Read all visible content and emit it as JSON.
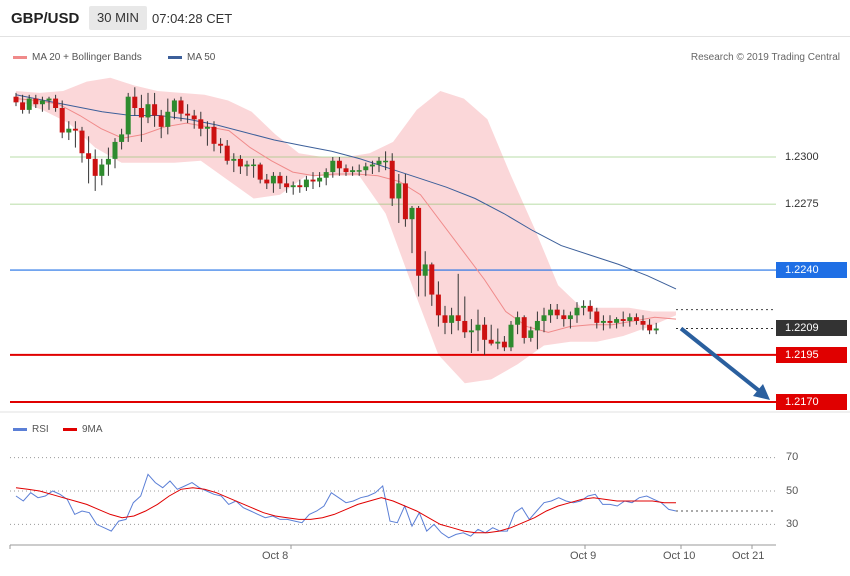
{
  "header": {
    "symbol": "GBP/USD",
    "timeframe": "30 MIN",
    "time": "07:04:28 CET"
  },
  "legend": {
    "ma_bb": {
      "label": "MA 20 + Bollinger Bands",
      "color": "#f08a8a"
    },
    "ma50": {
      "label": "MA 50",
      "color": "#3c5f9a"
    },
    "rsi": {
      "label": "RSI",
      "color": "#5b7fd6"
    },
    "ma9": {
      "label": "9MA",
      "color": "#e00000"
    }
  },
  "copyright": "Research © 2019 Trading Central",
  "price_labels": [
    {
      "text": "1.2300",
      "style": "plain"
    },
    {
      "text": "1.2275",
      "style": "plain"
    },
    {
      "text": "1.2240",
      "style": "blue"
    },
    {
      "text": "1.2209",
      "style": "dark"
    },
    {
      "text": "1.2195",
      "style": "red"
    },
    {
      "text": "1.2170",
      "style": "red"
    }
  ],
  "rsi_ticks": [
    "70",
    "50",
    "30"
  ],
  "x_labels": [
    "Oct 8",
    "Oct 9",
    "Oct 10",
    "Oct 21"
  ],
  "chart_data": {
    "type": "candlestick",
    "x_labels": [
      "Oct 8",
      "Oct 9",
      "Oct 10",
      "Oct 21"
    ],
    "price_levels": [
      {
        "value": 1.23,
        "kind": "grid",
        "color": "#7cbf5a"
      },
      {
        "value": 1.2275,
        "kind": "grid",
        "color": "#7cbf5a"
      },
      {
        "value": 1.224,
        "kind": "support",
        "color": "#1f6fe5"
      },
      {
        "value": 1.2209,
        "kind": "last-price",
        "color": "#333333"
      },
      {
        "value": 1.2195,
        "kind": "target",
        "color": "#e00000"
      },
      {
        "value": 1.217,
        "kind": "target",
        "color": "#e00000"
      }
    ],
    "arrow": {
      "from": [
        1.2209
      ],
      "to": [
        1.217
      ],
      "direction": "down",
      "color": "#2a5f9e"
    },
    "candles": [
      [
        1.2332,
        1.2334,
        1.2327,
        1.2329
      ],
      [
        1.2329,
        1.2333,
        1.2323,
        1.2325
      ],
      [
        1.2325,
        1.2333,
        1.2323,
        1.2331
      ],
      [
        1.2331,
        1.2333,
        1.2326,
        1.2328
      ],
      [
        1.2328,
        1.2332,
        1.2324,
        1.233
      ],
      [
        1.233,
        1.2332,
        1.2325,
        1.2331
      ],
      [
        1.2331,
        1.2333,
        1.2324,
        1.2326
      ],
      [
        1.2326,
        1.233,
        1.231,
        1.2313
      ],
      [
        1.2313,
        1.2319,
        1.2309,
        1.2315
      ],
      [
        1.2315,
        1.2319,
        1.2305,
        1.2314
      ],
      [
        1.2314,
        1.2316,
        1.2297,
        1.2302
      ],
      [
        1.2302,
        1.2311,
        1.2286,
        1.2299
      ],
      [
        1.2299,
        1.2304,
        1.2282,
        1.229
      ],
      [
        1.229,
        1.2299,
        1.2285,
        1.2296
      ],
      [
        1.2296,
        1.2305,
        1.229,
        1.2299
      ],
      [
        1.2299,
        1.231,
        1.2294,
        1.2308
      ],
      [
        1.2308,
        1.2315,
        1.2304,
        1.2312
      ],
      [
        1.2312,
        1.2334,
        1.2308,
        1.2332
      ],
      [
        1.2332,
        1.2337,
        1.2322,
        1.2326
      ],
      [
        1.2326,
        1.2333,
        1.2308,
        1.2321
      ],
      [
        1.2321,
        1.2334,
        1.2318,
        1.2328
      ],
      [
        1.2328,
        1.2334,
        1.2316,
        1.2322
      ],
      [
        1.2322,
        1.2325,
        1.231,
        1.2316
      ],
      [
        1.2316,
        1.2331,
        1.2312,
        1.2324
      ],
      [
        1.2324,
        1.2331,
        1.232,
        1.233
      ],
      [
        1.233,
        1.2332,
        1.2319,
        1.2323
      ],
      [
        1.2323,
        1.2328,
        1.2318,
        1.2322
      ],
      [
        1.2322,
        1.2325,
        1.2315,
        1.232
      ],
      [
        1.232,
        1.2324,
        1.2311,
        1.2315
      ],
      [
        1.2315,
        1.2319,
        1.2306,
        1.2316
      ],
      [
        1.2316,
        1.2319,
        1.2303,
        1.2307
      ],
      [
        1.2307,
        1.231,
        1.2302,
        1.2306
      ],
      [
        1.2306,
        1.2309,
        1.2296,
        1.2298
      ],
      [
        1.2298,
        1.2302,
        1.2292,
        1.2299
      ],
      [
        1.2299,
        1.2301,
        1.2291,
        1.2295
      ],
      [
        1.2295,
        1.2298,
        1.229,
        1.2296
      ],
      [
        1.2296,
        1.2299,
        1.2289,
        1.2296
      ],
      [
        1.2296,
        1.2297,
        1.2286,
        1.2288
      ],
      [
        1.2288,
        1.2291,
        1.2283,
        1.2286
      ],
      [
        1.2286,
        1.2292,
        1.2281,
        1.229
      ],
      [
        1.229,
        1.2292,
        1.2283,
        1.2286
      ],
      [
        1.2286,
        1.229,
        1.2281,
        1.2284
      ],
      [
        1.2284,
        1.2287,
        1.228,
        1.2285
      ],
      [
        1.2285,
        1.2288,
        1.2281,
        1.2284
      ],
      [
        1.2284,
        1.229,
        1.2282,
        1.2288
      ],
      [
        1.2288,
        1.2292,
        1.2283,
        1.2287
      ],
      [
        1.2287,
        1.2292,
        1.2284,
        1.2289
      ],
      [
        1.2289,
        1.2294,
        1.2285,
        1.2292
      ],
      [
        1.2292,
        1.23,
        1.2289,
        1.2298
      ],
      [
        1.2298,
        1.23,
        1.229,
        1.2294
      ],
      [
        1.2294,
        1.2296,
        1.229,
        1.2292
      ],
      [
        1.2292,
        1.2295,
        1.229,
        1.2293
      ],
      [
        1.2293,
        1.2296,
        1.229,
        1.2293
      ],
      [
        1.2293,
        1.2297,
        1.229,
        1.2295
      ],
      [
        1.2295,
        1.2298,
        1.2291,
        1.2296
      ],
      [
        1.2296,
        1.23,
        1.2292,
        1.2298
      ],
      [
        1.2298,
        1.2303,
        1.2293,
        1.2298
      ],
      [
        1.2298,
        1.2302,
        1.2274,
        1.2278
      ],
      [
        1.2278,
        1.2291,
        1.2265,
        1.2286
      ],
      [
        1.2286,
        1.2291,
        1.2263,
        1.2267
      ],
      [
        1.2267,
        1.2274,
        1.2249,
        1.2273
      ],
      [
        1.2273,
        1.2274,
        1.2226,
        1.2237
      ],
      [
        1.2237,
        1.225,
        1.2226,
        1.2243
      ],
      [
        1.2243,
        1.2244,
        1.2221,
        1.2227
      ],
      [
        1.2227,
        1.2234,
        1.221,
        1.2216
      ],
      [
        1.2216,
        1.2221,
        1.2206,
        1.2212
      ],
      [
        1.2212,
        1.222,
        1.2206,
        1.2216
      ],
      [
        1.2216,
        1.2238,
        1.2208,
        1.2213
      ],
      [
        1.2213,
        1.2226,
        1.2204,
        1.2207
      ],
      [
        1.2207,
        1.2214,
        1.2196,
        1.2208
      ],
      [
        1.2208,
        1.2219,
        1.2197,
        1.2211
      ],
      [
        1.2211,
        1.2215,
        1.2195,
        1.2203
      ],
      [
        1.2203,
        1.2211,
        1.22,
        1.2201
      ],
      [
        1.2201,
        1.2209,
        1.2198,
        1.2202
      ],
      [
        1.2202,
        1.2205,
        1.2197,
        1.2199
      ],
      [
        1.2199,
        1.2213,
        1.2197,
        1.2211
      ],
      [
        1.2211,
        1.2218,
        1.2206,
        1.2215
      ],
      [
        1.2215,
        1.2216,
        1.2201,
        1.2204
      ],
      [
        1.2204,
        1.221,
        1.2202,
        1.2208
      ],
      [
        1.2208,
        1.2218,
        1.2198,
        1.2213
      ],
      [
        1.2213,
        1.222,
        1.2207,
        1.2216
      ],
      [
        1.2216,
        1.2222,
        1.2212,
        1.2219
      ],
      [
        1.2219,
        1.2222,
        1.2214,
        1.2216
      ],
      [
        1.2216,
        1.2219,
        1.221,
        1.2214
      ],
      [
        1.2214,
        1.2218,
        1.2209,
        1.2216
      ],
      [
        1.2216,
        1.2223,
        1.2212,
        1.222
      ],
      [
        1.222,
        1.2224,
        1.2216,
        1.2221
      ],
      [
        1.2221,
        1.2224,
        1.2214,
        1.2218
      ],
      [
        1.2218,
        1.222,
        1.2209,
        1.2212
      ],
      [
        1.2212,
        1.2216,
        1.2208,
        1.2213
      ],
      [
        1.2213,
        1.2216,
        1.2209,
        1.2212
      ],
      [
        1.2212,
        1.2215,
        1.2209,
        1.2214
      ],
      [
        1.2214,
        1.2218,
        1.221,
        1.2213
      ],
      [
        1.2213,
        1.2217,
        1.221,
        1.2215
      ],
      [
        1.2215,
        1.2217,
        1.2211,
        1.2213
      ],
      [
        1.2213,
        1.2216,
        1.2208,
        1.2211
      ],
      [
        1.2211,
        1.2214,
        1.2206,
        1.2208
      ],
      [
        1.2208,
        1.2212,
        1.2206,
        1.2209
      ]
    ],
    "ma50": [
      1.2333,
      1.233,
      1.2327,
      1.2324,
      1.2322,
      1.2322,
      1.232,
      1.2317,
      1.2313,
      1.2309,
      1.2306,
      1.2303,
      1.2299,
      1.2294,
      1.2289,
      1.2284,
      1.2278,
      1.227,
      1.2261,
      1.2253,
      1.2248,
      1.2243,
      1.2237,
      1.223
    ],
    "ma20": [
      1.2331,
      1.233,
      1.2328,
      1.2322,
      1.2315,
      1.231,
      1.2312,
      1.2316,
      1.2318,
      1.2316,
      1.2314,
      1.2305,
      1.2298,
      1.2292,
      1.229,
      1.2291,
      1.2291,
      1.229,
      1.2287,
      1.228,
      1.2265,
      1.225,
      1.2235,
      1.2218,
      1.221,
      1.2207,
      1.221,
      1.2211,
      1.2211,
      1.2213,
      1.2215,
      1.2214
    ],
    "bb_upper": [
      1.2335,
      1.2334,
      1.2335,
      1.234,
      1.2342,
      1.2338,
      1.2335,
      1.2334,
      1.2333,
      1.233,
      1.2324,
      1.2312,
      1.2302,
      1.23,
      1.23,
      1.2302,
      1.2308,
      1.2325,
      1.2335,
      1.2331,
      1.232,
      1.229,
      1.2262,
      1.2232,
      1.222,
      1.222,
      1.222,
      1.2218,
      1.2218
    ],
    "bb_lower": [
      1.233,
      1.2325,
      1.2318,
      1.2305,
      1.2297,
      1.2297,
      1.2297,
      1.2298,
      1.2288,
      1.2278,
      1.228,
      1.229,
      1.229,
      1.229,
      1.227,
      1.2232,
      1.2195,
      1.218,
      1.2182,
      1.219,
      1.22,
      1.2202,
      1.2202,
      1.2205,
      1.221,
      1.2216
    ],
    "rsi": [
      47,
      44,
      49,
      46,
      47,
      50,
      48,
      45,
      36,
      38,
      37,
      30,
      28,
      26,
      32,
      33,
      43,
      47,
      60,
      55,
      52,
      56,
      51,
      53,
      55,
      52,
      50,
      48,
      47,
      42,
      44,
      40,
      38,
      36,
      34,
      35,
      33,
      33,
      32,
      31,
      36,
      38,
      41,
      49,
      46,
      43,
      44,
      46,
      47,
      49,
      53,
      32,
      31,
      41,
      29,
      37,
      26,
      30,
      25,
      22,
      24,
      25,
      23,
      27,
      25,
      28,
      26,
      26,
      37,
      40,
      33,
      38,
      43,
      44,
      46,
      44,
      43,
      44,
      47,
      48,
      42,
      42,
      41,
      44,
      43,
      46,
      47,
      45,
      43,
      39,
      38
    ],
    "rsi_ma9": [
      52,
      51,
      50,
      48,
      46,
      44,
      42,
      39,
      36,
      34,
      35,
      38,
      42,
      47,
      51,
      52,
      51,
      49,
      46,
      43,
      40,
      37,
      35,
      34,
      33,
      33,
      34,
      36,
      39,
      42,
      44,
      46,
      44,
      41,
      38,
      34,
      30,
      28,
      26,
      25,
      25,
      26,
      28,
      31,
      34,
      38,
      41,
      43,
      45,
      46,
      45,
      44,
      44,
      44,
      44,
      43,
      43
    ],
    "rsi_range": [
      20,
      78
    ],
    "price_range": [
      1.2166,
      1.2346
    ]
  }
}
